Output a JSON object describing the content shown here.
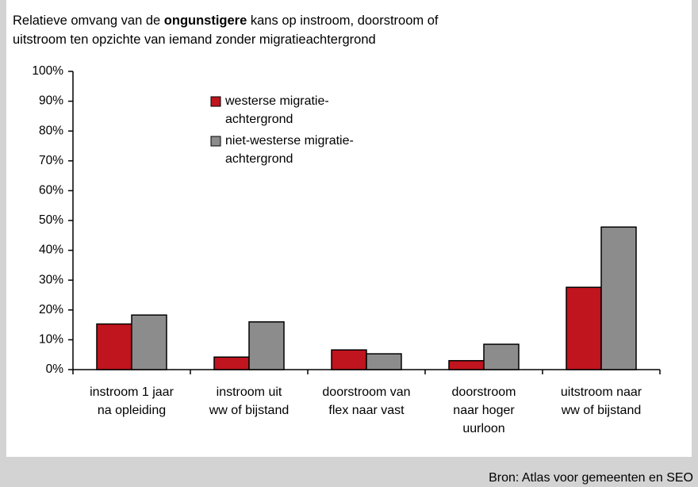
{
  "chart_data": {
    "type": "bar",
    "title_parts": [
      "Relatieve omvang van de ",
      "ongunstigere",
      " kans op instroom, doorstroom of\nuitstroom ten opzichte van iemand zonder migratieachtergrond"
    ],
    "categories": [
      "instroom 1 jaar\nna opleiding",
      "instroom uit\nww of bijstand",
      "doorstroom van\nflex naar vast",
      "doorstroom\nnaar hoger\nuurloon",
      "uitstroom naar\nww of bijstand"
    ],
    "series": [
      {
        "name": "westerse migratie-\nachtergrond",
        "color": "#c0141e",
        "values": [
          15.3,
          4.2,
          6.6,
          3.0,
          27.6
        ]
      },
      {
        "name": "niet-westerse migratie-\nachtergrond",
        "color": "#8c8c8c",
        "values": [
          18.3,
          16.0,
          5.3,
          8.5,
          47.8
        ]
      }
    ],
    "ylim": [
      0,
      100
    ],
    "yticks": [
      {
        "value": 0,
        "label": "0%"
      },
      {
        "value": 10,
        "label": "10%"
      },
      {
        "value": 20,
        "label": "20%"
      },
      {
        "value": 30,
        "label": "30%"
      },
      {
        "value": 40,
        "label": "40%"
      },
      {
        "value": 50,
        "label": "50%"
      },
      {
        "value": 60,
        "label": "60%"
      },
      {
        "value": 70,
        "label": "70%"
      },
      {
        "value": 80,
        "label": "80%"
      },
      {
        "value": 90,
        "label": "90%"
      },
      {
        "value": 100,
        "label": "100%"
      }
    ],
    "grid": false,
    "source": "Bron: Atlas voor gemeenten en SEO"
  }
}
